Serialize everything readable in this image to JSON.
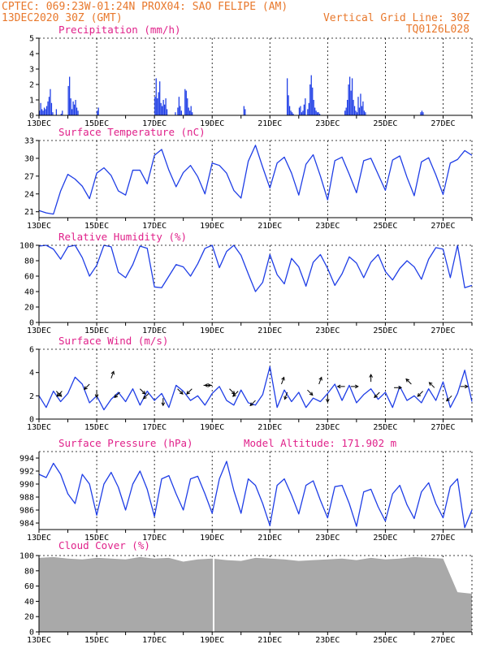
{
  "header": {
    "line1_left": "CPTEC:   069:23W-01:24N  PROX04: SAO FELIPE (AM)",
    "line2_left": "13DEC2020 30Z (GMT)",
    "line2_right": "Vertical Grid Line: 30Z",
    "line3_right": "TQ0126L028"
  },
  "colors": {
    "header": "#e8782c",
    "title": "#e0218a",
    "series": "#1f3ee6",
    "cloud": "#a9a9a9",
    "arrow": "#000000"
  },
  "x_axis": {
    "start": "13DEC",
    "end": "28DEC",
    "tick_labels": [
      "13DEC",
      "15DEC",
      "17DEC",
      "19DEC",
      "21DEC",
      "23DEC",
      "25DEC",
      "27DEC"
    ],
    "tick_days": [
      0,
      2,
      4,
      6,
      8,
      10,
      12,
      14
    ],
    "domain_days": [
      0,
      15
    ]
  },
  "chart_data": [
    {
      "id": "precip",
      "type": "bar",
      "title": "Precipitation (mm/h)",
      "ylim": [
        0,
        5
      ],
      "yticks": [
        "0",
        "1",
        "2",
        "3",
        "4",
        "5"
      ],
      "ytick_values": [
        0,
        1,
        2,
        3,
        4,
        5
      ],
      "series_by_day": [
        [
          0.3,
          0.8,
          0.4,
          0.3,
          0.5,
          0.4,
          0.6,
          0.9,
          1.2,
          1.7,
          0.8,
          0.2,
          0.0,
          0.0,
          0.4,
          0.0,
          0.0,
          0.0,
          0.1,
          0.3,
          0.0,
          0.0,
          0.0,
          0.0
        ],
        [
          1.9,
          2.5,
          1.1,
          0.4,
          0.9,
          0.7,
          1.0,
          0.5,
          0.3,
          0.0,
          0.0,
          0.0,
          0.0,
          0.0,
          0.0,
          0.0,
          0.0,
          0.0,
          0.0,
          0.0,
          0.0,
          0.0,
          0.0,
          0.0
        ],
        [
          0.3,
          0.5,
          0.0,
          0.0,
          0.0,
          0.0,
          0.0,
          0.0,
          0.0,
          0.0,
          0.0,
          0.0,
          0.0,
          0.0,
          0.0,
          0.0,
          0.0,
          0.0,
          0.0,
          0.0,
          0.0,
          0.0,
          0.0,
          0.0
        ],
        [
          0.0,
          0.0,
          0.0,
          0.0,
          0.0,
          0.0,
          0.0,
          0.0,
          0.0,
          0.0,
          0.0,
          0.0,
          0.0,
          0.0,
          0.0,
          0.0,
          0.0,
          0.0,
          0.0,
          0.0,
          0.0,
          0.0,
          0.0,
          0.0
        ],
        [
          1.2,
          2.4,
          1.1,
          1.5,
          2.2,
          0.8,
          0.6,
          1.0,
          0.7,
          1.1,
          0.4,
          0.0,
          0.0,
          0.0,
          0.0,
          0.0,
          0.0,
          0.2,
          0.0,
          0.5,
          1.2,
          0.6,
          0.3,
          0.0
        ],
        [
          0.0,
          1.7,
          1.6,
          1.1,
          0.5,
          0.3,
          0.6,
          0.2,
          0.0,
          0.0,
          0.0,
          0.0,
          0.0,
          0.0,
          0.0,
          0.0,
          0.0,
          0.0,
          0.0,
          0.0,
          0.0,
          0.0,
          0.0,
          0.0
        ],
        [
          0.0,
          0.0,
          0.0,
          0.0,
          0.0,
          0.0,
          0.0,
          0.0,
          0.0,
          0.0,
          0.0,
          0.0,
          0.0,
          0.0,
          0.0,
          0.0,
          0.0,
          0.0,
          0.0,
          0.0,
          0.0,
          0.0,
          0.0,
          0.0
        ],
        [
          0.0,
          0.0,
          0.6,
          0.4,
          0.0,
          0.0,
          0.0,
          0.0,
          0.0,
          0.0,
          0.0,
          0.0,
          0.0,
          0.0,
          0.0,
          0.0,
          0.0,
          0.0,
          0.0,
          0.0,
          0.0,
          0.0,
          0.0,
          0.0
        ],
        [
          0.0,
          0.0,
          0.0,
          0.0,
          0.0,
          0.0,
          0.0,
          0.0,
          0.0,
          0.0,
          0.0,
          0.0,
          0.0,
          0.0,
          2.4,
          1.3,
          0.6,
          0.3,
          0.2,
          0.1,
          0.0,
          0.0,
          0.0,
          0.0
        ],
        [
          0.5,
          0.6,
          0.2,
          0.3,
          0.7,
          1.1,
          0.0,
          0.4,
          0.8,
          2.0,
          2.6,
          1.8,
          1.0,
          0.5,
          0.3,
          0.2,
          0.2,
          0.1,
          0.0,
          0.0,
          0.0,
          0.0,
          0.0,
          0.0
        ],
        [
          0.0,
          0.0,
          0.0,
          0.0,
          0.0,
          0.0,
          0.0,
          0.0,
          0.0,
          0.0,
          0.0,
          0.0,
          0.0,
          0.0,
          0.3,
          0.5,
          1.0,
          2.0,
          2.5,
          1.6,
          2.4,
          1.0,
          0.6,
          0.3
        ],
        [
          0.2,
          1.2,
          0.5,
          1.4,
          0.6,
          0.9,
          0.3,
          0.2,
          0.0,
          0.0,
          0.0,
          0.0,
          0.0,
          0.0,
          0.0,
          0.0,
          0.0,
          0.0,
          0.0,
          0.0,
          0.0,
          0.0,
          0.0,
          0.0
        ],
        [
          0.0,
          0.0,
          0.0,
          0.0,
          0.0,
          0.0,
          0.0,
          0.0,
          0.0,
          0.0,
          0.0,
          0.0,
          0.0,
          0.0,
          0.0,
          0.0,
          0.0,
          0.0,
          0.0,
          0.0,
          0.0,
          0.0,
          0.0,
          0.0
        ],
        [
          0.0,
          0.0,
          0.0,
          0.0,
          0.0,
          0.2,
          0.3,
          0.2,
          0.0,
          0.0,
          0.0,
          0.0,
          0.0,
          0.0,
          0.0,
          0.0,
          0.0,
          0.0,
          0.0,
          0.0,
          0.0,
          0.0,
          0.0,
          0.0
        ],
        [
          0.0,
          0.0,
          0.0,
          0.0,
          0.0,
          0.0,
          0.0,
          0.0,
          0.0,
          0.0,
          0.0,
          0.0,
          0.0,
          0.0,
          0.0,
          0.0,
          0.0,
          0.0,
          0.0,
          0.0,
          0.0,
          0.0,
          0.0,
          0.0
        ]
      ]
    },
    {
      "id": "temp",
      "type": "line",
      "title": "Surface Temperature (nC)",
      "ylim": [
        20,
        33
      ],
      "yticks": [
        "21",
        "24",
        "27",
        "30",
        "33"
      ],
      "ytick_values": [
        21,
        24,
        27,
        30,
        33
      ],
      "x": [
        0,
        0.25,
        0.5,
        0.75,
        1,
        1.25,
        1.5,
        1.75,
        2,
        2.25,
        2.5,
        2.75,
        3,
        3.25,
        3.5,
        3.75,
        4,
        4.25,
        4.5,
        4.75,
        5,
        5.25,
        5.5,
        5.75,
        6,
        6.25,
        6.5,
        6.75,
        7,
        7.25,
        7.5,
        7.75,
        8,
        8.25,
        8.5,
        8.75,
        9,
        9.25,
        9.5,
        9.75,
        10,
        10.25,
        10.5,
        10.75,
        11,
        11.25,
        11.5,
        11.75,
        12,
        12.25,
        12.5,
        12.75,
        13,
        13.25,
        13.5,
        13.75,
        14,
        14.25,
        14.5,
        14.75,
        15
      ],
      "values": [
        21.2,
        20.8,
        20.6,
        24.5,
        27.3,
        26.5,
        25.3,
        23.2,
        27.5,
        28.4,
        27.1,
        24.5,
        23.8,
        28.0,
        28.0,
        25.7,
        30.5,
        31.5,
        28.0,
        25.2,
        27.6,
        28.8,
        26.9,
        24.0,
        29.2,
        28.8,
        27.5,
        24.6,
        23.3,
        29.5,
        32.2,
        28.5,
        25.0,
        29.2,
        30.2,
        27.5,
        23.8,
        29.0,
        30.6,
        27.0,
        23.0,
        29.6,
        30.2,
        27.3,
        24.2,
        29.6,
        30.0,
        27.3,
        24.6,
        29.7,
        30.4,
        26.8,
        23.7,
        29.4,
        30.1,
        27.2,
        23.9,
        29.2,
        29.8,
        31.3,
        30.5
      ]
    },
    {
      "id": "rh",
      "type": "line",
      "title": "Relative Humidity (%)",
      "ylim": [
        0,
        100
      ],
      "yticks": [
        "0",
        "20",
        "40",
        "60",
        "80",
        "100"
      ],
      "ytick_values": [
        0,
        20,
        40,
        60,
        80,
        100
      ],
      "x": [
        0,
        0.25,
        0.5,
        0.75,
        1,
        1.25,
        1.5,
        1.75,
        2,
        2.25,
        2.5,
        2.75,
        3,
        3.25,
        3.5,
        3.75,
        4,
        4.25,
        4.5,
        4.75,
        5,
        5.25,
        5.5,
        5.75,
        6,
        6.25,
        6.5,
        6.75,
        7,
        7.25,
        7.5,
        7.75,
        8,
        8.25,
        8.5,
        8.75,
        9,
        9.25,
        9.5,
        9.75,
        10,
        10.25,
        10.5,
        10.75,
        11,
        11.25,
        11.5,
        11.75,
        12,
        12.25,
        12.5,
        12.75,
        13,
        13.25,
        13.5,
        13.75,
        14,
        14.25,
        14.5,
        14.75,
        15
      ],
      "values": [
        99,
        100,
        95,
        82,
        98,
        100,
        84,
        60,
        74,
        100,
        98,
        65,
        58,
        75,
        99,
        96,
        46,
        45,
        60,
        75,
        72,
        60,
        76,
        96,
        100,
        71,
        92,
        100,
        87,
        63,
        40,
        52,
        88,
        62,
        50,
        83,
        72,
        47,
        78,
        88,
        70,
        48,
        63,
        85,
        77,
        58,
        78,
        88,
        66,
        55,
        70,
        80,
        72,
        56,
        82,
        97,
        95,
        58,
        100,
        45,
        48
      ]
    },
    {
      "id": "wind",
      "type": "line",
      "title": "Surface Wind (m/s)",
      "ylim": [
        0,
        6
      ],
      "yticks": [
        "0",
        "2",
        "4",
        "6"
      ],
      "ytick_values": [
        0,
        2,
        4,
        6
      ],
      "x": [
        0,
        0.25,
        0.5,
        0.75,
        1,
        1.25,
        1.5,
        1.75,
        2,
        2.25,
        2.5,
        2.75,
        3,
        3.25,
        3.5,
        3.75,
        4,
        4.25,
        4.5,
        4.75,
        5,
        5.25,
        5.5,
        5.75,
        6,
        6.25,
        6.5,
        6.75,
        7,
        7.25,
        7.5,
        7.75,
        8,
        8.25,
        8.5,
        8.75,
        9,
        9.25,
        9.5,
        9.75,
        10,
        10.25,
        10.5,
        10.75,
        11,
        11.25,
        11.5,
        11.75,
        12,
        12.25,
        12.5,
        12.75,
        13,
        13.25,
        13.5,
        13.75,
        14,
        14.25,
        14.5,
        14.75,
        15
      ],
      "values": [
        2.0,
        1.0,
        2.4,
        1.5,
        2.2,
        3.6,
        3.0,
        1.4,
        2.0,
        0.8,
        1.7,
        2.3,
        1.5,
        2.6,
        1.2,
        2.4,
        1.6,
        2.2,
        1.0,
        2.9,
        2.4,
        1.6,
        2.0,
        1.2,
        2.2,
        2.8,
        1.6,
        1.2,
        2.5,
        1.4,
        1.2,
        2.1,
        4.5,
        1.0,
        2.5,
        1.5,
        2.3,
        1.0,
        1.8,
        1.5,
        2.2,
        3.0,
        1.6,
        2.9,
        1.4,
        2.1,
        2.6,
        1.7,
        2.3,
        1.0,
        2.8,
        1.6,
        2.0,
        1.4,
        2.6,
        1.6,
        3.2,
        1.0,
        2.2,
        4.2,
        1.5
      ],
      "arrows": [
        {
          "x": 0.6,
          "y": 2.4,
          "dir": 135
        },
        {
          "x": 0.8,
          "y": 2.4,
          "dir": 225
        },
        {
          "x": 1.75,
          "y": 3.0,
          "dir": 225
        },
        {
          "x": 2.0,
          "y": 2.5,
          "dir": 180
        },
        {
          "x": 2.5,
          "y": 3.5,
          "dir": 20
        },
        {
          "x": 2.8,
          "y": 2.3,
          "dir": 225
        },
        {
          "x": 3.5,
          "y": 2.6,
          "dir": 135
        },
        {
          "x": 3.8,
          "y": 2.2,
          "dir": 225
        },
        {
          "x": 4.3,
          "y": 1.8,
          "dir": 180
        },
        {
          "x": 4.8,
          "y": 2.6,
          "dir": 135
        },
        {
          "x": 5.3,
          "y": 2.6,
          "dir": 225
        },
        {
          "x": 5.7,
          "y": 2.9,
          "dir": 90
        },
        {
          "x": 6.0,
          "y": 2.9,
          "dir": 270
        },
        {
          "x": 6.6,
          "y": 2.6,
          "dir": 135
        },
        {
          "x": 6.9,
          "y": 2.4,
          "dir": 225
        },
        {
          "x": 7.5,
          "y": 1.6,
          "dir": 225
        },
        {
          "x": 8.4,
          "y": 3.0,
          "dir": 20
        },
        {
          "x": 8.6,
          "y": 2.3,
          "dir": 200
        },
        {
          "x": 9.3,
          "y": 2.5,
          "dir": 135
        },
        {
          "x": 9.7,
          "y": 3.0,
          "dir": 20
        },
        {
          "x": 10.0,
          "y": 2.1,
          "dir": 180
        },
        {
          "x": 10.6,
          "y": 2.8,
          "dir": 270
        },
        {
          "x": 10.8,
          "y": 2.8,
          "dir": 90
        },
        {
          "x": 11.5,
          "y": 3.2,
          "dir": 0
        },
        {
          "x": 11.8,
          "y": 2.3,
          "dir": 225
        },
        {
          "x": 12.3,
          "y": 2.7,
          "dir": 90
        },
        {
          "x": 12.9,
          "y": 3.0,
          "dir": 315
        },
        {
          "x": 13.3,
          "y": 2.4,
          "dir": 225
        },
        {
          "x": 13.7,
          "y": 2.7,
          "dir": 315
        },
        {
          "x": 14.3,
          "y": 2.0,
          "dir": 225
        },
        {
          "x": 14.6,
          "y": 2.8,
          "dir": 90
        }
      ]
    },
    {
      "id": "pressure",
      "type": "line",
      "title": "Surface Pressure (hPa)",
      "ylim": [
        983,
        995
      ],
      "yticks": [
        "984",
        "986",
        "988",
        "990",
        "992",
        "994"
      ],
      "ytick_values": [
        984,
        986,
        988,
        990,
        992,
        994
      ],
      "x": [
        0,
        0.25,
        0.5,
        0.75,
        1,
        1.25,
        1.5,
        1.75,
        2,
        2.25,
        2.5,
        2.75,
        3,
        3.25,
        3.5,
        3.75,
        4,
        4.25,
        4.5,
        4.75,
        5,
        5.25,
        5.5,
        5.75,
        6,
        6.25,
        6.5,
        6.75,
        7,
        7.25,
        7.5,
        7.75,
        8,
        8.25,
        8.5,
        8.75,
        9,
        9.25,
        9.5,
        9.75,
        10,
        10.25,
        10.5,
        10.75,
        11,
        11.25,
        11.5,
        11.75,
        12,
        12.25,
        12.5,
        12.75,
        13,
        13.25,
        13.5,
        13.75,
        14,
        14.25,
        14.5,
        14.75,
        15
      ],
      "values": [
        991.5,
        991.0,
        993.2,
        991.5,
        988.5,
        987.0,
        991.5,
        990.0,
        985.2,
        990.0,
        991.8,
        989.5,
        986.0,
        990.0,
        992.0,
        989.2,
        985.0,
        990.8,
        991.3,
        988.5,
        986.0,
        990.8,
        991.2,
        988.5,
        985.5,
        990.8,
        993.5,
        989.0,
        985.5,
        990.8,
        989.8,
        987.0,
        983.6,
        989.8,
        990.8,
        988.3,
        985.4,
        989.8,
        990.5,
        987.5,
        984.8,
        989.6,
        989.8,
        987.0,
        983.5,
        988.8,
        989.2,
        986.5,
        984.3,
        988.5,
        989.8,
        986.8,
        984.7,
        988.8,
        990.2,
        987.0,
        984.8,
        989.6,
        990.8,
        983.3,
        986.0
      ]
    },
    {
      "id": "cloud",
      "type": "area",
      "title": "Cloud Cover (%)",
      "ylim": [
        0,
        100
      ],
      "yticks": [
        "0",
        "20",
        "40",
        "60",
        "80",
        "100"
      ],
      "ytick_values": [
        0,
        20,
        40,
        60,
        80,
        100
      ],
      "x": [
        0,
        0.5,
        1,
        1.5,
        2,
        2.5,
        3,
        3.5,
        4,
        4.5,
        5,
        5.5,
        6,
        6.5,
        7,
        7.5,
        8,
        8.5,
        9,
        9.5,
        10,
        10.5,
        11,
        11.5,
        12,
        12.5,
        13,
        13.5,
        14,
        14.5,
        15
      ],
      "values": [
        97,
        98,
        96,
        95,
        97,
        96,
        95,
        98,
        96,
        97,
        92,
        95,
        96,
        94,
        93,
        97,
        96,
        95,
        93,
        94,
        95,
        96,
        94,
        97,
        95,
        96,
        98,
        97,
        96,
        52,
        50
      ]
    }
  ],
  "annotations": {
    "wind_title": "Surface Wind (m/s)",
    "model_altitude": "Model Altitude: 171.902 m"
  }
}
